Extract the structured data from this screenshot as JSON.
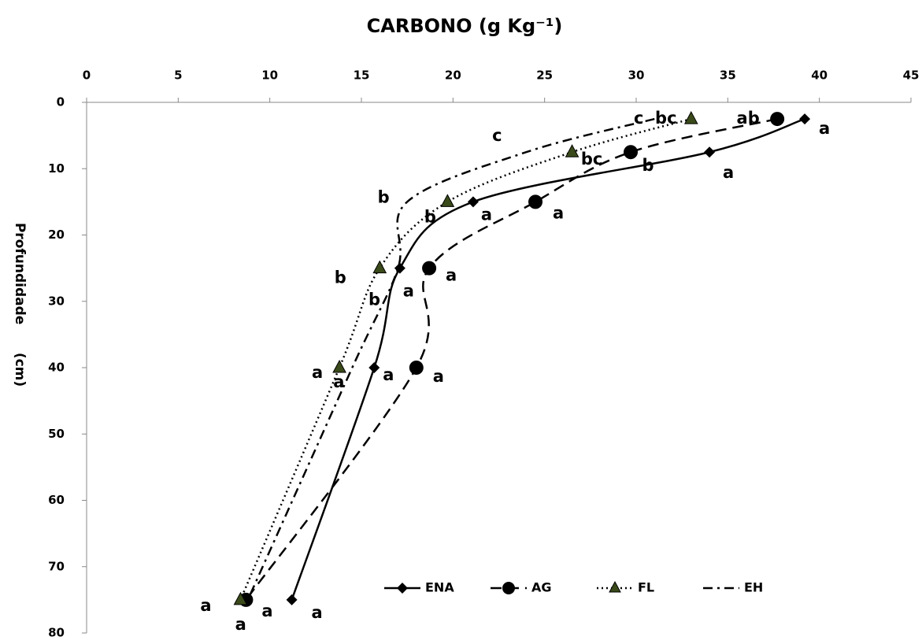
{
  "chart_data": {
    "type": "line",
    "title": "CARBONO (g Kg⁻¹)",
    "y_label": "Profundidade      (cm)",
    "depths": [
      2.5,
      7.5,
      15,
      25,
      40,
      75
    ],
    "xlim": [
      0,
      45
    ],
    "xticks": [
      0,
      5,
      10,
      15,
      20,
      25,
      30,
      35,
      40,
      45
    ],
    "ylim": [
      0,
      80
    ],
    "yticks": [
      0,
      10,
      20,
      30,
      40,
      50,
      60,
      70,
      80
    ],
    "y_inverted": true,
    "x_axis_top": true,
    "legend_position": "bottom",
    "series": [
      {
        "name": "ENA",
        "color": "#000000",
        "dash": "solid",
        "marker": "diamond",
        "values": [
          39.2,
          34.0,
          21.1,
          17.1,
          15.7,
          11.2
        ],
        "point_labels": [
          "a",
          "a",
          "a",
          "a",
          "a",
          "a"
        ]
      },
      {
        "name": "AG",
        "color": "#000000",
        "dash": "dashed",
        "marker": "circle",
        "values": [
          37.7,
          29.7,
          24.5,
          18.7,
          18.0,
          8.7
        ],
        "point_labels": [
          "ab",
          "b",
          "a",
          "a",
          "a",
          "a"
        ]
      },
      {
        "name": "FL",
        "color": "#000000",
        "dash": "dotted",
        "marker": "triangle",
        "values": [
          33.0,
          26.5,
          19.7,
          16.0,
          13.8,
          8.4
        ],
        "point_labels": [
          "bc",
          "bc",
          "b",
          "b",
          "a",
          "a"
        ]
      },
      {
        "name": "EH",
        "color": "#000000",
        "dash": "dashdot",
        "marker": "none",
        "values": [
          31.0,
          24.0,
          17.5,
          17.0,
          14.5,
          8.8
        ],
        "point_labels": [
          "c",
          "c",
          "b",
          "b",
          "a",
          "a"
        ]
      }
    ]
  }
}
